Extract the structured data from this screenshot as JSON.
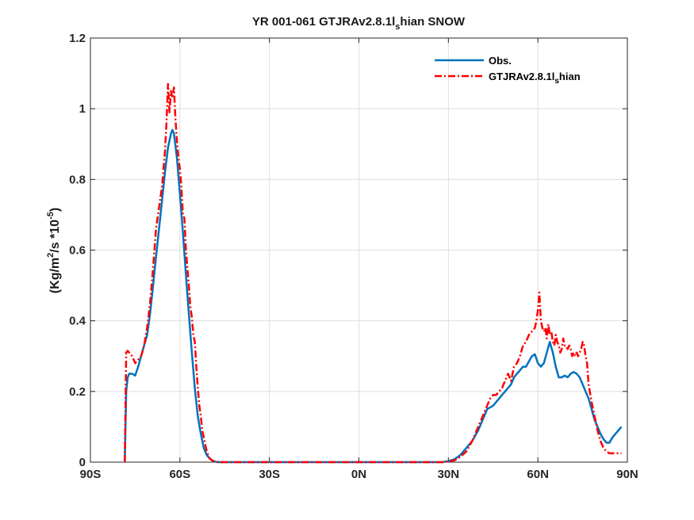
{
  "chart_data": {
    "type": "line",
    "title": "YR 001-061 GTJRAv2.8.1l_shian SNOW",
    "title_parts": {
      "main": "YR 001-061 GTJRAv2.8.1l",
      "sub": "s",
      "tail": "hian SNOW"
    },
    "ylabel": "(Kg/m^2/s *10^-5)",
    "ylabel_parts": {
      "a": "(Kg/m",
      "sup1": "2",
      "b": "/s *10",
      "sup2": "-5",
      "c": ")"
    },
    "xlim": [
      -90,
      90
    ],
    "ylim": [
      0,
      1.2
    ],
    "xticks": [
      -90,
      -60,
      -30,
      0,
      30,
      60,
      90
    ],
    "xtick_labels": [
      "90S",
      "60S",
      "30S",
      "0N",
      "30N",
      "60N",
      "90N"
    ],
    "yticks": [
      0,
      0.2,
      0.4,
      0.6,
      0.8,
      1,
      1.2
    ],
    "ytick_labels": [
      "0",
      "0.2",
      "0.4",
      "0.6",
      "0.8",
      "1",
      "1.2"
    ],
    "grid": true,
    "legend_position": "top-right",
    "series": [
      {
        "name": "Obs.",
        "name_parts": {
          "main": "Obs.",
          "sub": "",
          "tail": ""
        },
        "color": "#0072BD",
        "style": "solid",
        "x": [
          -78.5,
          -78,
          -77.5,
          -77,
          -76,
          -75,
          -74,
          -73,
          -72,
          -71,
          -70,
          -69,
          -68,
          -67,
          -66,
          -65,
          -64,
          -63,
          -62.5,
          -62,
          -61,
          -60,
          -59,
          -58,
          -57,
          -56,
          -55,
          -54,
          -53,
          -52,
          -51,
          -50,
          -49,
          -48,
          -47,
          -46,
          -45,
          -40,
          -30,
          -20,
          -10,
          0,
          10,
          20,
          28,
          30,
          32,
          34,
          36,
          38,
          40,
          41,
          42,
          43,
          44,
          45,
          46,
          47,
          48,
          49,
          50,
          51,
          52,
          53,
          54,
          55,
          56,
          57,
          58,
          59,
          60,
          61,
          62,
          63,
          64,
          65,
          66,
          67,
          68,
          69,
          70,
          71,
          72,
          73,
          74,
          75,
          76,
          77,
          78,
          79,
          80,
          81,
          82,
          83,
          84,
          85,
          86,
          87,
          88
        ],
        "y": [
          0,
          0.2,
          0.24,
          0.25,
          0.25,
          0.245,
          0.27,
          0.3,
          0.33,
          0.36,
          0.42,
          0.5,
          0.58,
          0.66,
          0.74,
          0.82,
          0.89,
          0.93,
          0.94,
          0.93,
          0.86,
          0.76,
          0.65,
          0.53,
          0.42,
          0.31,
          0.21,
          0.13,
          0.08,
          0.04,
          0.02,
          0.01,
          0.004,
          0.001,
          0,
          0,
          0,
          0,
          0,
          0,
          0,
          0,
          0,
          0,
          0,
          0.003,
          0.008,
          0.02,
          0.04,
          0.06,
          0.09,
          0.11,
          0.13,
          0.15,
          0.155,
          0.16,
          0.17,
          0.18,
          0.19,
          0.2,
          0.21,
          0.22,
          0.24,
          0.25,
          0.26,
          0.27,
          0.27,
          0.285,
          0.3,
          0.305,
          0.28,
          0.27,
          0.28,
          0.31,
          0.34,
          0.31,
          0.27,
          0.24,
          0.24,
          0.245,
          0.24,
          0.25,
          0.255,
          0.25,
          0.24,
          0.22,
          0.2,
          0.18,
          0.15,
          0.12,
          0.1,
          0.08,
          0.065,
          0.055,
          0.055,
          0.07,
          0.08,
          0.09,
          0.1
        ]
      },
      {
        "name": "GTJRAv2.8.1l_shian",
        "name_parts": {
          "main": "GTJRAv2.8.1l",
          "sub": "s",
          "tail": "hian"
        },
        "color": "#FF0000",
        "style": "dashdot",
        "x": [
          -78.5,
          -78,
          -77.5,
          -77,
          -76,
          -75,
          -74,
          -73,
          -72,
          -71,
          -70,
          -69,
          -68,
          -67,
          -66,
          -65,
          -64.5,
          -64,
          -63.5,
          -63,
          -62.5,
          -62,
          -61.5,
          -61,
          -60.5,
          -60,
          -59.5,
          -59,
          -58.5,
          -58,
          -57,
          -56.5,
          -56,
          -55.5,
          -55,
          -54.5,
          -54,
          -53.5,
          -53,
          -52.5,
          -52,
          -51.5,
          -51,
          -50,
          -49,
          -48,
          -47,
          -46,
          -45,
          -40,
          -30,
          -20,
          -10,
          0,
          10,
          20,
          28,
          30,
          32,
          34,
          36,
          38,
          40,
          41,
          42,
          43,
          44,
          45,
          46,
          47,
          48,
          49,
          50,
          51,
          52,
          53,
          54,
          55,
          56,
          57,
          58,
          59,
          59.5,
          60,
          60.5,
          61,
          61.5,
          62,
          62.5,
          63,
          63.5,
          64,
          64.5,
          65,
          65.5,
          66,
          66.5,
          67,
          67.5,
          68,
          68.5,
          69,
          69.5,
          70,
          70.5,
          71,
          71.5,
          72,
          72.5,
          73,
          73.5,
          74,
          74.5,
          75,
          75.5,
          76,
          76.5,
          77,
          78,
          79,
          80,
          81,
          82,
          83,
          84,
          85,
          86,
          87,
          88
        ],
        "y": [
          0,
          0.31,
          0.315,
          0.31,
          0.3,
          0.28,
          0.29,
          0.3,
          0.33,
          0.38,
          0.45,
          0.55,
          0.66,
          0.72,
          0.78,
          0.88,
          0.96,
          1.07,
          0.99,
          1.05,
          1.03,
          1.06,
          0.97,
          0.91,
          0.86,
          0.83,
          0.78,
          0.7,
          0.69,
          0.6,
          0.5,
          0.44,
          0.41,
          0.36,
          0.34,
          0.27,
          0.21,
          0.16,
          0.13,
          0.09,
          0.07,
          0.05,
          0.03,
          0.01,
          0.004,
          0.001,
          0,
          0,
          0,
          0,
          0,
          0,
          0,
          0,
          0,
          0,
          0,
          0.002,
          0.005,
          0.015,
          0.03,
          0.06,
          0.1,
          0.12,
          0.14,
          0.16,
          0.18,
          0.19,
          0.19,
          0.2,
          0.21,
          0.23,
          0.25,
          0.23,
          0.27,
          0.28,
          0.3,
          0.33,
          0.34,
          0.36,
          0.37,
          0.38,
          0.4,
          0.43,
          0.48,
          0.4,
          0.38,
          0.37,
          0.38,
          0.35,
          0.39,
          0.36,
          0.37,
          0.34,
          0.33,
          0.36,
          0.34,
          0.33,
          0.31,
          0.32,
          0.35,
          0.33,
          0.33,
          0.32,
          0.33,
          0.32,
          0.3,
          0.31,
          0.3,
          0.31,
          0.3,
          0.31,
          0.32,
          0.34,
          0.33,
          0.3,
          0.28,
          0.22,
          0.17,
          0.13,
          0.09,
          0.06,
          0.04,
          0.03,
          0.025,
          0.025,
          0.025,
          0.025,
          0.025
        ]
      }
    ]
  }
}
